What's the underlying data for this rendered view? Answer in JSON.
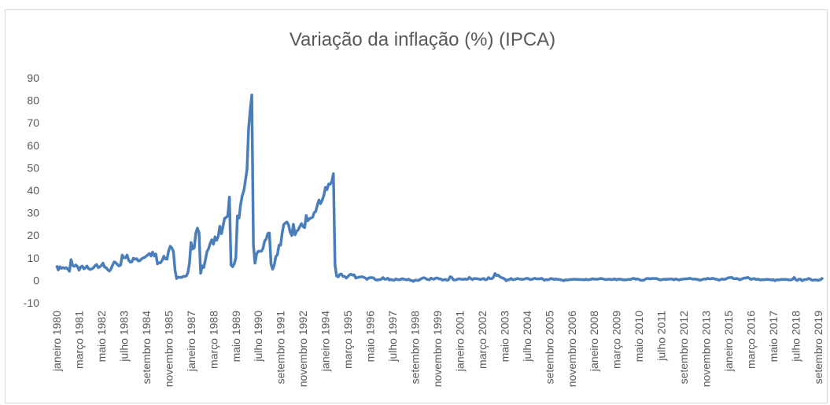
{
  "chart_data": {
    "type": "line",
    "title": "Variação da inflação (%) (IPCA)",
    "categories": [
      "janeiro 1980",
      null,
      null,
      null,
      null,
      null,
      null,
      null,
      null,
      null,
      null,
      null,
      null,
      null,
      "março 1981",
      null,
      null,
      null,
      null,
      null,
      null,
      null,
      null,
      null,
      null,
      null,
      null,
      null,
      "maio 1982",
      null,
      null,
      null,
      null,
      null,
      null,
      null,
      null,
      null,
      null,
      null,
      null,
      null,
      "julho 1983",
      null,
      null,
      null,
      null,
      null,
      null,
      null,
      null,
      null,
      null,
      null,
      null,
      null,
      "setembro 1984",
      null,
      null,
      null,
      null,
      null,
      null,
      null,
      null,
      null,
      null,
      null,
      null,
      null,
      "novembro 1985",
      null,
      null,
      null,
      null,
      null,
      null,
      null,
      null,
      null,
      null,
      null,
      null,
      null,
      "janeiro 1987",
      null,
      null,
      null,
      null,
      null,
      null,
      null,
      null,
      null,
      null,
      null,
      null,
      null,
      "março 1988",
      null,
      null,
      null,
      null,
      null,
      null,
      null,
      null,
      null,
      null,
      null,
      null,
      null,
      "maio 1989",
      null,
      null,
      null,
      null,
      null,
      null,
      null,
      null,
      null,
      null,
      null,
      null,
      null,
      "julho 1990",
      null,
      null,
      null,
      null,
      null,
      null,
      null,
      null,
      null,
      null,
      null,
      null,
      null,
      "setembro 1991",
      null,
      null,
      null,
      null,
      null,
      null,
      null,
      null,
      null,
      null,
      null,
      null,
      null,
      "novembro 1992",
      null,
      null,
      null,
      null,
      null,
      null,
      null,
      null,
      null,
      null,
      null,
      null,
      null,
      "janeiro 1994",
      null,
      null,
      null,
      null,
      null,
      null,
      null,
      null,
      null,
      null,
      null,
      null,
      null,
      "março 1995",
      null,
      null,
      null,
      null,
      null,
      null,
      null,
      null,
      null,
      null,
      null,
      null,
      null,
      "maio 1996",
      null,
      null,
      null,
      null,
      null,
      null,
      null,
      null,
      null,
      null,
      null,
      null,
      null,
      "julho 1997",
      null,
      null,
      null,
      null,
      null,
      null,
      null,
      null,
      null,
      null,
      null,
      null,
      null,
      "setembro 1998",
      null,
      null,
      null,
      null,
      null,
      null,
      null,
      null,
      null,
      null,
      null,
      null,
      null,
      "novembro 1999",
      null,
      null,
      null,
      null,
      null,
      null,
      null,
      null,
      null,
      null,
      null,
      null,
      null,
      "janeiro 2001",
      null,
      null,
      null,
      null,
      null,
      null,
      null,
      null,
      null,
      null,
      null,
      null,
      null,
      "março 2002",
      null,
      null,
      null,
      null,
      null,
      null,
      null,
      null,
      null,
      null,
      null,
      null,
      null,
      "maio 2003",
      null,
      null,
      null,
      null,
      null,
      null,
      null,
      null,
      null,
      null,
      null,
      null,
      null,
      "julho 2004",
      null,
      null,
      null,
      null,
      null,
      null,
      null,
      null,
      null,
      null,
      null,
      null,
      null,
      "setembro 2005",
      null,
      null,
      null,
      null,
      null,
      null,
      null,
      null,
      null,
      null,
      null,
      null,
      null,
      "novembro 2006",
      null,
      null,
      null,
      null,
      null,
      null,
      null,
      null,
      null,
      null,
      null,
      null,
      null,
      "janeiro 2008",
      null,
      null,
      null,
      null,
      null,
      null,
      null,
      null,
      null,
      null,
      null,
      null,
      null,
      "março 2009",
      null,
      null,
      null,
      null,
      null,
      null,
      null,
      null,
      null,
      null,
      null,
      null,
      null,
      "maio 2010",
      null,
      null,
      null,
      null,
      null,
      null,
      null,
      null,
      null,
      null,
      null,
      null,
      null,
      "julho 2011",
      null,
      null,
      null,
      null,
      null,
      null,
      null,
      null,
      null,
      null,
      null,
      null,
      null,
      "setembro 2012",
      null,
      null,
      null,
      null,
      null,
      null,
      null,
      null,
      null,
      null,
      null,
      null,
      null,
      "novembro 2013",
      null,
      null,
      null,
      null,
      null,
      null,
      null,
      null,
      null,
      null,
      null,
      null,
      null,
      "janeiro 2015",
      null,
      null,
      null,
      null,
      null,
      null,
      null,
      null,
      null,
      null,
      null,
      null,
      null,
      "março 2016",
      null,
      null,
      null,
      null,
      null,
      null,
      null,
      null,
      null,
      null,
      null,
      null,
      null,
      "maio 2017",
      null,
      null,
      null,
      null,
      null,
      null,
      null,
      null,
      null,
      null,
      null,
      null,
      null,
      "julho 2018",
      null,
      null,
      null,
      null,
      null,
      null,
      null,
      null,
      null,
      null,
      null,
      null,
      null,
      "setembro 2019",
      null,
      null,
      null
    ],
    "values": [
      6.6,
      4.6,
      6.0,
      5.3,
      5.7,
      5.3,
      5.6,
      5.0,
      4.0,
      9.2,
      6.6,
      6.2,
      6.8,
      6.1,
      4.5,
      5.9,
      6.3,
      5.1,
      5.6,
      6.3,
      5.1,
      4.8,
      5.1,
      5.5,
      6.5,
      7.0,
      5.6,
      6.0,
      6.6,
      7.6,
      5.8,
      5.6,
      4.6,
      4.1,
      5.1,
      6.8,
      8.2,
      7.8,
      7.0,
      6.4,
      6.8,
      11.2,
      10.0,
      10.0,
      11.2,
      9.0,
      8.1,
      8.2,
      9.8,
      9.4,
      9.6,
      8.6,
      8.7,
      9.5,
      9.9,
      10.2,
      10.7,
      11.3,
      11.9,
      10.8,
      12.5,
      10.8,
      11.7,
      7.3,
      7.8,
      7.8,
      8.9,
      10.7,
      9.5,
      9.4,
      13.1,
      15.1,
      14.4,
      12.7,
      4.5,
      0.8,
      1.4,
      1.3,
      1.2,
      1.7,
      1.7,
      1.9,
      3.3,
      7.3,
      16.8,
      13.9,
      14.4,
      21.0,
      23.2,
      21.1,
      3.1,
      6.4,
      5.7,
      9.2,
      12.8,
      14.1,
      16.5,
      18.0,
      16.0,
      19.3,
      17.8,
      19.5,
      24.0,
      20.7,
      24.0,
      27.6,
      27.9,
      28.8,
      37.0,
      6.8,
      6.0,
      7.3,
      9.9,
      28.6,
      27.7,
      33.7,
      37.6,
      39.8,
      44.3,
      49.4,
      67.6,
      75.7,
      82.4,
      15.5,
      7.6,
      11.7,
      12.9,
      12.9,
      12.9,
      14.2,
      17.5,
      18.3,
      20.8,
      21.0,
      7.3,
      4.9,
      6.7,
      10.5,
      11.4,
      15.6,
      15.6,
      21.1,
      24.8,
      25.5,
      25.9,
      24.5,
      21.4,
      19.9,
      24.9,
      20.2,
      21.8,
      22.4,
      23.9,
      25.2,
      23.9,
      23.4,
      28.8,
      26.5,
      27.3,
      27.7,
      28.0,
      30.1,
      30.7,
      33.5,
      35.7,
      34.1,
      35.6,
      37.7,
      41.3,
      40.3,
      42.8,
      42.7,
      44.0,
      47.4,
      6.8,
      1.9,
      1.5,
      2.6,
      2.8,
      1.7,
      1.7,
      1.0,
      1.6,
      2.4,
      2.7,
      2.3,
      2.4,
      1.0,
      1.2,
      1.4,
      1.5,
      1.6,
      1.3,
      1.0,
      0.4,
      1.0,
      1.2,
      1.2,
      1.1,
      0.4,
      0.1,
      0.2,
      0.3,
      0.5,
      1.2,
      0.5,
      0.5,
      0.9,
      0.1,
      0.4,
      0.1,
      0.0,
      0.6,
      0.3,
      0.2,
      0.4,
      0.7,
      0.5,
      0.3,
      0.2,
      0.5,
      0.0,
      -0.1,
      -0.5,
      0.0,
      0.0,
      -0.1,
      0.3,
      0.7,
      1.1,
      1.1,
      0.6,
      0.3,
      0.2,
      1.0,
      0.6,
      0.5,
      1.0,
      1.0,
      0.6,
      0.6,
      0.1,
      0.2,
      0.4,
      0.0,
      0.2,
      1.6,
      1.3,
      0.2,
      0.1,
      0.3,
      0.6,
      0.6,
      0.5,
      0.4,
      0.6,
      0.4,
      0.5,
      1.3,
      0.7,
      0.3,
      0.8,
      0.7,
      0.7,
      0.5,
      0.4,
      0.6,
      0.8,
      0.2,
      0.4,
      1.2,
      0.7,
      0.7,
      1.3,
      3.0,
      2.1,
      2.3,
      1.6,
      1.2,
      1.0,
      0.6,
      -0.2,
      0.2,
      0.3,
      0.8,
      0.3,
      0.3,
      0.5,
      0.8,
      0.6,
      0.5,
      0.4,
      0.5,
      0.7,
      0.9,
      0.7,
      0.3,
      0.4,
      0.7,
      0.9,
      0.6,
      0.6,
      0.6,
      0.9,
      0.5,
      0.0,
      0.3,
      0.2,
      0.4,
      0.8,
      0.6,
      0.4,
      0.6,
      0.4,
      0.4,
      0.2,
      0.1,
      -0.2,
      0.2,
      0.1,
      0.2,
      0.3,
      0.3,
      0.5,
      0.4,
      0.4,
      0.4,
      0.3,
      0.3,
      0.3,
      0.2,
      0.5,
      0.2,
      0.3,
      0.4,
      0.7,
      0.5,
      0.5,
      0.5,
      0.6,
      0.8,
      0.7,
      0.5,
      0.3,
      0.3,
      0.5,
      0.4,
      0.3,
      0.5,
      0.6,
      0.2,
      0.5,
      0.5,
      0.4,
      0.2,
      0.2,
      0.2,
      0.3,
      0.4,
      0.4,
      0.8,
      0.8,
      0.5,
      0.6,
      0.4,
      0.0,
      0.0,
      0.0,
      0.5,
      0.8,
      0.8,
      0.6,
      0.8,
      0.8,
      0.8,
      0.8,
      0.5,
      0.2,
      0.2,
      0.4,
      0.5,
      0.4,
      0.5,
      0.5,
      0.6,
      0.5,
      0.2,
      0.6,
      0.4,
      0.1,
      0.4,
      0.4,
      0.6,
      0.6,
      0.6,
      0.8,
      0.9,
      0.6,
      0.5,
      0.6,
      0.4,
      0.3,
      0.0,
      0.2,
      0.4,
      0.6,
      0.5,
      0.9,
      0.6,
      0.7,
      0.9,
      0.7,
      0.5,
      0.4,
      0.0,
      0.3,
      0.6,
      0.4,
      0.5,
      0.8,
      1.2,
      1.2,
      1.3,
      0.7,
      0.7,
      0.8,
      0.6,
      0.2,
      0.5,
      0.8,
      1.0,
      1.0,
      1.3,
      0.9,
      0.4,
      0.6,
      0.8,
      0.4,
      0.5,
      0.4,
      0.1,
      0.3,
      0.2,
      0.3,
      0.4,
      0.3,
      0.3,
      0.1,
      0.3,
      -0.2,
      0.2,
      0.2,
      0.2,
      0.4,
      0.3,
      0.4,
      0.3,
      0.3,
      0.1,
      0.2,
      0.4,
      1.3,
      0.3,
      -0.1,
      0.5,
      0.5,
      -0.2,
      0.2,
      0.3,
      0.4,
      0.8,
      0.6,
      0.1,
      0.0,
      0.2,
      0.1,
      0.0,
      0.1,
      0.5,
      1.2
    ],
    "color": "#4a7ebb",
    "ylim": [
      -10,
      90
    ],
    "yticks": [
      -10,
      0,
      10,
      20,
      30,
      40,
      50,
      60,
      70,
      80,
      90
    ],
    "grid": false
  }
}
